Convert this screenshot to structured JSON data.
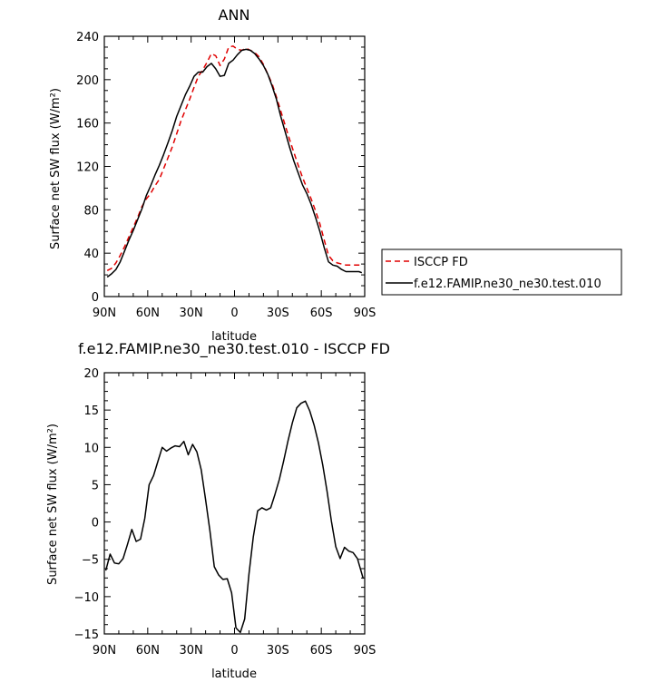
{
  "chart_data": [
    {
      "type": "line",
      "title": "ANN",
      "xlabel": "latitude",
      "ylabel": "Surface net SW flux (W/m²)",
      "xlim": [
        90,
        -90
      ],
      "ylim": [
        0,
        240
      ],
      "x_ticks": [
        90,
        60,
        30,
        0,
        -30,
        -60,
        -90
      ],
      "x_tick_labels": [
        "90N",
        "60N",
        "30N",
        "0",
        "30S",
        "60S",
        "90S"
      ],
      "y_ticks": [
        0,
        40,
        80,
        120,
        160,
        200,
        240
      ],
      "y_tick_labels": [
        "0",
        "40",
        "80",
        "120",
        "160",
        "200",
        "240"
      ],
      "legend_placement": "right",
      "series": [
        {
          "name": "ISCCP FD",
          "color": "#e00000",
          "style": "dashed",
          "x": [
            88,
            85,
            82,
            79,
            76,
            73,
            70,
            67,
            64,
            61,
            58,
            55,
            52,
            49,
            46,
            43,
            40,
            37,
            34,
            31,
            28,
            25,
            22,
            19,
            16,
            13,
            10,
            7,
            4,
            1,
            -2,
            -5,
            -8,
            -11,
            -14,
            -17,
            -20,
            -23,
            -26,
            -29,
            -32,
            -35,
            -38,
            -41,
            -44,
            -47,
            -50,
            -53,
            -56,
            -59,
            -62,
            -65,
            -68,
            -71,
            -74,
            -77,
            -80,
            -83,
            -86,
            -88
          ],
          "values": [
            24,
            26,
            31,
            38,
            46,
            55,
            64,
            73,
            83,
            90,
            95,
            102,
            108,
            118,
            128,
            138,
            150,
            162,
            172,
            182,
            193,
            203,
            209,
            216,
            224,
            222,
            213,
            219,
            230,
            231,
            228,
            227,
            229,
            227,
            225,
            221,
            214,
            205,
            196,
            184,
            171,
            158,
            145,
            133,
            121,
            110,
            100,
            90,
            79,
            67,
            52,
            38,
            33,
            31,
            30,
            29,
            29,
            29,
            29,
            29
          ]
        },
        {
          "name": "f.e12.FAMIP.ne30_ne30.test.010",
          "color": "#000000",
          "style": "solid",
          "x": [
            88,
            85,
            82,
            79,
            76,
            73,
            70,
            67,
            64,
            61,
            58,
            55,
            52,
            49,
            46,
            43,
            40,
            37,
            34,
            31,
            28,
            25,
            22,
            19,
            16,
            13,
            10,
            7,
            4,
            1,
            -2,
            -5,
            -8,
            -11,
            -14,
            -17,
            -20,
            -23,
            -26,
            -29,
            -32,
            -35,
            -38,
            -41,
            -44,
            -47,
            -50,
            -53,
            -56,
            -59,
            -62,
            -65,
            -68,
            -71,
            -74,
            -77,
            -80,
            -83,
            -86,
            -88
          ],
          "values": [
            18,
            21,
            25,
            32,
            42,
            52,
            61,
            71,
            81,
            93,
            102,
            112,
            121,
            131,
            142,
            153,
            166,
            176,
            186,
            194,
            203,
            207,
            207,
            212,
            215,
            210,
            203,
            204,
            215,
            218,
            223,
            227,
            228,
            227,
            224,
            219,
            213,
            205,
            194,
            182,
            166,
            152,
            138,
            125,
            114,
            103,
            95,
            85,
            73,
            60,
            45,
            32,
            29,
            28,
            25,
            23,
            23,
            23,
            23,
            22
          ]
        }
      ]
    },
    {
      "type": "line",
      "title": "f.e12.FAMIP.ne30_ne30.test.010 - ISCCP FD",
      "xlabel": "latitude",
      "ylabel": "Surface net SW flux (W/m²)",
      "xlim": [
        90,
        -90
      ],
      "ylim": [
        -15,
        20
      ],
      "x_ticks": [
        90,
        60,
        30,
        0,
        -30,
        -60,
        -90
      ],
      "x_tick_labels": [
        "90N",
        "60N",
        "30N",
        "0",
        "30S",
        "60S",
        "90S"
      ],
      "y_ticks": [
        -15,
        -10,
        -5,
        0,
        5,
        10,
        15,
        20
      ],
      "y_tick_labels": [
        "−15",
        "−10",
        "−5",
        "0",
        "5",
        "10",
        "15",
        "20"
      ],
      "series": [
        {
          "color": "#000000",
          "style": "solid",
          "x": [
            89,
            86,
            83,
            80,
            77,
            74,
            71,
            68,
            65,
            62,
            59,
            56,
            53,
            50,
            47,
            44,
            41,
            38,
            35,
            32,
            29,
            26,
            23,
            20,
            17,
            14,
            11,
            8,
            5,
            2,
            -1,
            -4,
            -7,
            -10,
            -13,
            -16,
            -19,
            -22,
            -25,
            -28,
            -31,
            -34,
            -37,
            -40,
            -43,
            -46,
            -49,
            -52,
            -55,
            -58,
            -61,
            -64,
            -67,
            -70,
            -73,
            -76,
            -79,
            -82,
            -85,
            -89
          ],
          "values": [
            -6.5,
            -4.3,
            -5.5,
            -5.6,
            -4.9,
            -3.0,
            -1.0,
            -2.6,
            -2.3,
            0.5,
            5.0,
            6.2,
            8.1,
            10.0,
            9.5,
            9.9,
            10.2,
            10.1,
            10.8,
            9.0,
            10.4,
            9.4,
            7.0,
            3.0,
            -1.2,
            -6.0,
            -7.1,
            -7.7,
            -7.6,
            -9.5,
            -14.2,
            -14.8,
            -13.0,
            -7.0,
            -2.0,
            1.5,
            1.9,
            1.6,
            1.9,
            3.7,
            5.7,
            8.2,
            10.9,
            13.3,
            15.3,
            15.9,
            16.2,
            14.9,
            13.0,
            10.6,
            7.6,
            4.1,
            0.1,
            -3.3,
            -4.9,
            -3.4,
            -3.9,
            -4.1,
            -4.9,
            -7.6
          ]
        }
      ]
    }
  ]
}
